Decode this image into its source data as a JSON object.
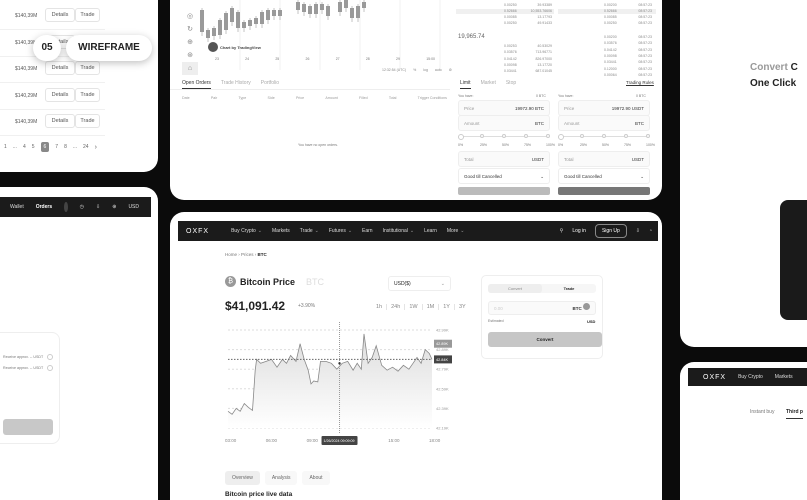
{
  "market_list": {
    "rows": [
      {
        "volume": "$140,39M",
        "details": "Details",
        "trade": "Trade"
      },
      {
        "volume": "$140,39M",
        "details": "Details",
        "trade": "Trade"
      },
      {
        "volume": "$140,39M",
        "details": "Details",
        "trade": "Trade"
      },
      {
        "volume": "$140,29M",
        "details": "Details",
        "trade": "Trade"
      },
      {
        "volume": "$140,39M",
        "details": "Details",
        "trade": "Trade"
      }
    ],
    "pagination": [
      "1",
      "...",
      "4",
      "5",
      "6",
      "7",
      "8",
      "...",
      "24"
    ],
    "active_page": "6"
  },
  "badge": {
    "number": "05",
    "label": "WIREFRAME"
  },
  "trading": {
    "chart_credit": "Chart by TradingView",
    "x_ticks": [
      "23",
      "24",
      "25",
      "26",
      "27",
      "28",
      "29",
      "15:00"
    ],
    "chart_footer": [
      "12:32:54 (UTC)",
      "%",
      "log",
      "auto"
    ],
    "tabs": [
      "Open Orders",
      "Trade History",
      "Portfolio"
    ],
    "columns": [
      "Date",
      "Pair",
      "Type",
      "Side",
      "Price",
      "Amount",
      "Filled",
      "Total",
      "Trigger Conditions"
    ],
    "empty": "You have no open orders.",
    "last_price": "19,965.74",
    "orderbook": [
      [
        "0.00250",
        "39.93389"
      ],
      [
        "0.52666",
        "10,553.76606"
      ],
      [
        "0.00085",
        "13.17793"
      ],
      [
        "0.00250",
        "49.91433"
      ],
      [
        "0.00253",
        "40.53029"
      ],
      [
        "0.03576",
        "713.96771"
      ],
      [
        "0.04142",
        "826.97000"
      ],
      [
        "0.00098",
        "13.17720"
      ],
      [
        "0.03441",
        "687.01045"
      ]
    ],
    "trades": [
      [
        "0.00200",
        "08:57:23"
      ],
      [
        "0.52666",
        "08:57:23"
      ],
      [
        "0.00085",
        "08:57:23"
      ],
      [
        "0.00250",
        "08:57:23"
      ],
      [
        "0.00200",
        "08:57:23"
      ],
      [
        "0.03576",
        "08:57:23"
      ],
      [
        "0.04142",
        "08:57:23"
      ],
      [
        "0.00098",
        "08:57:23"
      ],
      [
        "0.03441",
        "08:57:23"
      ],
      [
        "0.12000",
        "08:57:23"
      ],
      [
        "0.00064",
        "08:57:23"
      ]
    ],
    "order_tabs": [
      "Limit",
      "Market",
      "Stop"
    ],
    "rules": "Trading Rules",
    "you_have": "You have:",
    "bal_btc": "0 BTC",
    "bal_usdt": "0 BTC",
    "price_label": "Price",
    "price_value": "19972.90",
    "price_unit_buy": "BTC",
    "price_unit_sell": "USDT",
    "amount_label": "Amount",
    "amount_unit": "BTC",
    "pcts": [
      "0%",
      "25%",
      "50%",
      "75%",
      "100%"
    ],
    "total_label": "Total",
    "total_unit": "USDT",
    "tif": "Good till Cancelled"
  },
  "left_app": {
    "nav": [
      "Wallet",
      "Orders"
    ],
    "currency": "USD",
    "receive": [
      "Receive approx. -- USDT",
      "Receive approx. -- USDT"
    ]
  },
  "promo": {
    "title_grey": "Convert",
    "title_rest": "C",
    "line2": "One Click"
  },
  "mini_app": {
    "brand": "OXFX",
    "nav": [
      "Buy Crypto",
      "Markets"
    ],
    "tabs": [
      "Instant buy",
      "Third p"
    ]
  },
  "main": {
    "brand": "OXFX",
    "nav": [
      "Buy Crypto",
      "Markets",
      "Trade",
      "Futures",
      "Earn",
      "Institutional",
      "Learn",
      "More"
    ],
    "login": "Log in",
    "signup": "Sign Up",
    "breadcrumb": [
      "Home",
      "Prices",
      "BTC"
    ],
    "title": "Bitcoin Price",
    "ticker": "BTC",
    "price": "$41,091.42",
    "change": "+3.90%",
    "currency": "USD($)",
    "ranges": [
      "1h",
      "24h",
      "1W",
      "1M",
      "1Y",
      "3Y"
    ],
    "widget": {
      "tabs": [
        "Convert",
        "Trade"
      ],
      "amount_placeholder": "0.00",
      "coin": "BTC",
      "estimated": "Estimated",
      "est_unit": "USD",
      "button": "Convert"
    },
    "content_tabs": [
      "Overview",
      "Analysis",
      "About"
    ],
    "section_title": "Bitcoin price live data"
  },
  "chart_data": {
    "type": "line",
    "x_ticks": [
      "03:00",
      "06:00",
      "09:00",
      "12:00",
      "15:00",
      "18:00"
    ],
    "y_ticks": [
      "42.99K",
      "42.89K",
      "42.79K",
      "42.59K",
      "42.39K",
      "42.19K"
    ],
    "y_tick_values": [
      42.99,
      42.89,
      42.79,
      42.59,
      42.39,
      42.19
    ],
    "hover_label": "1/26/2024 09:09:09",
    "tags": [
      "42.89K",
      "42.84K"
    ],
    "x_hours": [
      3,
      3.3,
      3.6,
      3.9,
      4.2,
      4.5,
      4.8,
      5.0,
      5.1,
      5.4,
      5.8,
      6.2,
      6.6,
      7.0,
      7.3,
      7.6,
      8.0,
      8.3,
      8.6,
      8.9,
      9.1,
      9.3,
      9.6,
      9.8,
      10.2,
      10.6,
      11.0,
      11.4,
      11.8,
      12.2,
      12.5,
      12.8,
      13.0,
      13.3,
      13.6,
      13.9,
      14.3,
      14.7,
      15.1,
      15.5,
      15.9,
      16.3,
      16.6,
      16.9,
      17.2,
      17.5,
      17.8,
      18.0
    ],
    "values": [
      42.36,
      42.33,
      42.39,
      42.36,
      42.44,
      42.4,
      42.37,
      42.78,
      42.84,
      42.82,
      42.83,
      42.84,
      42.8,
      42.84,
      42.82,
      42.86,
      42.83,
      42.92,
      42.84,
      42.78,
      42.64,
      42.67,
      42.66,
      42.83,
      42.83,
      42.82,
      42.79,
      42.82,
      42.83,
      42.78,
      42.82,
      42.79,
      42.97,
      42.82,
      42.85,
      42.91,
      42.81,
      42.78,
      42.8,
      42.77,
      42.81,
      42.79,
      42.82,
      42.85,
      42.82,
      42.89,
      42.87,
      42.84
    ]
  }
}
